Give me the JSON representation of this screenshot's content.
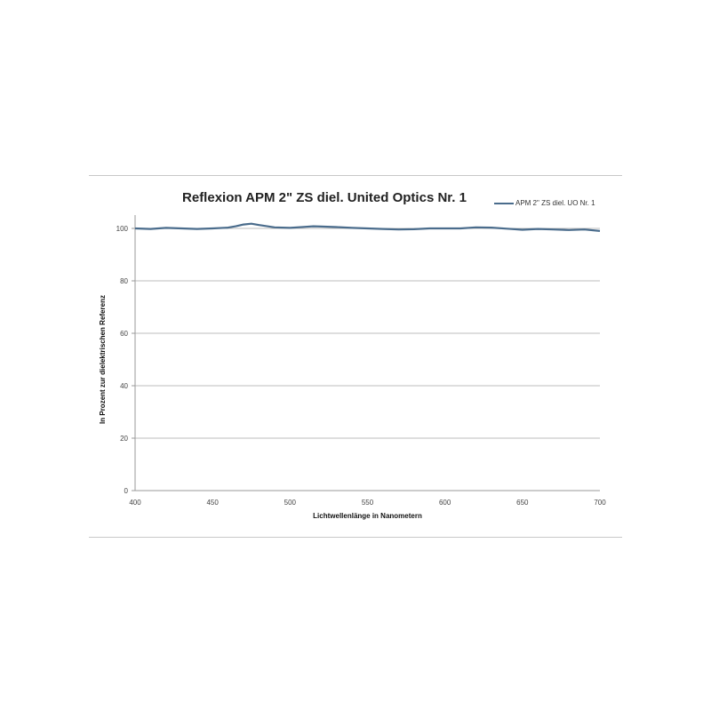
{
  "chart_data": {
    "type": "line",
    "title": "Reflexion APM 2\" ZS diel. United Optics Nr. 1",
    "xlabel": "Lichtwellenlänge in Nanometern",
    "ylabel": "In Prozent zur dielektrischen Referenz",
    "xlim": [
      400,
      700
    ],
    "ylim": [
      0,
      100
    ],
    "xticks": [
      400,
      450,
      500,
      550,
      600,
      650,
      700
    ],
    "yticks": [
      0,
      20,
      40,
      60,
      80,
      100
    ],
    "grid": "horizontal",
    "legend_position": "top-right",
    "series": [
      {
        "name": "APM 2\" ZS diel. UO Nr. 1",
        "color": "#4a6c8c",
        "x": [
          400,
          410,
          420,
          430,
          440,
          450,
          460,
          465,
          470,
          475,
          480,
          490,
          500,
          510,
          515,
          520,
          530,
          540,
          550,
          560,
          570,
          580,
          590,
          600,
          610,
          620,
          630,
          640,
          650,
          660,
          670,
          680,
          690,
          700
        ],
        "y": [
          100,
          99.8,
          100.2,
          100,
          99.8,
          100,
          100.3,
          100.8,
          101.5,
          101.8,
          101.3,
          100.4,
          100.2,
          100.6,
          100.8,
          100.7,
          100.5,
          100.2,
          100,
          99.8,
          99.6,
          99.7,
          100,
          100,
          100,
          100.4,
          100.3,
          99.9,
          99.5,
          99.8,
          99.6,
          99.4,
          99.6,
          99.0
        ]
      }
    ]
  }
}
